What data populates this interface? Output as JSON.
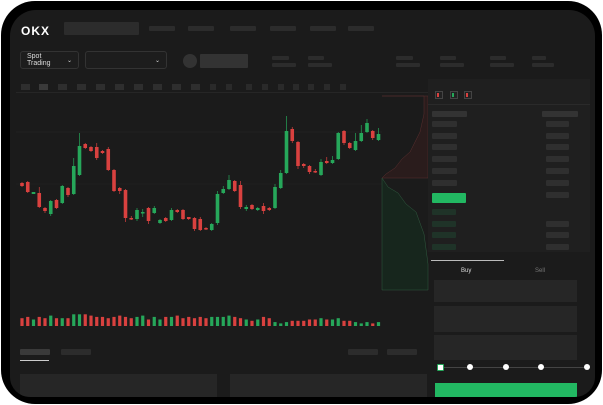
{
  "header": {
    "logo": "OKX"
  },
  "toolbar": {
    "market_selector": "Spot Trading",
    "market_chevron": "chevron-down-icon",
    "pair_chevron": "chevron-down-icon"
  },
  "order_form": {
    "buy_tab": "Buy",
    "sell_tab": "Sell",
    "active_tab": "Buy",
    "slider_percent": 0
  },
  "colors": {
    "up": "#26a75a",
    "down": "#d9413f",
    "accent": "#22b862",
    "background": "#1b1b1b"
  },
  "chart_data": {
    "type": "candlestick",
    "candles": [
      [
        48,
        49,
        44,
        45
      ],
      [
        49,
        50,
        38,
        39
      ],
      [
        37,
        39,
        37,
        39
      ],
      [
        38,
        44,
        23,
        24
      ],
      [
        23,
        24,
        18,
        20
      ],
      [
        17,
        31,
        15,
        30
      ],
      [
        31,
        32,
        22,
        23
      ],
      [
        28,
        46,
        27,
        45
      ],
      [
        43,
        44,
        34,
        36
      ],
      [
        37,
        73,
        36,
        65
      ],
      [
        56,
        98,
        55,
        85
      ],
      [
        87,
        88,
        82,
        83
      ],
      [
        84,
        85,
        79,
        80
      ],
      [
        84,
        88,
        71,
        73
      ],
      [
        80,
        81,
        77,
        78
      ],
      [
        82,
        84,
        60,
        61
      ],
      [
        61,
        62,
        39,
        40
      ],
      [
        43,
        44,
        37,
        40
      ],
      [
        41,
        42,
        9,
        13
      ],
      [
        13,
        15,
        11,
        12
      ],
      [
        12,
        23,
        10,
        21
      ],
      [
        18,
        22,
        14,
        19
      ],
      [
        23,
        24,
        7,
        10
      ],
      [
        18,
        25,
        17,
        23
      ],
      [
        8,
        12,
        7,
        11
      ],
      [
        13,
        14,
        9,
        10
      ],
      [
        11,
        23,
        10,
        21
      ],
      [
        21,
        22,
        18,
        19
      ],
      [
        21,
        22,
        11,
        12
      ],
      [
        14,
        14,
        11,
        12
      ],
      [
        13,
        14,
        0,
        2
      ],
      [
        12,
        14,
        0,
        1
      ],
      [
        3,
        4,
        1,
        2
      ],
      [
        1,
        8,
        0,
        7
      ],
      [
        8,
        40,
        6,
        37
      ],
      [
        38,
        45,
        37,
        42
      ],
      [
        42,
        56,
        41,
        51
      ],
      [
        50,
        51,
        39,
        40
      ],
      [
        46,
        50,
        22,
        24
      ],
      [
        22,
        26,
        20,
        24
      ],
      [
        26,
        27,
        21,
        22
      ],
      [
        21,
        24,
        20,
        23
      ],
      [
        25,
        28,
        17,
        20
      ],
      [
        23,
        24,
        20,
        21
      ],
      [
        23,
        47,
        22,
        44
      ],
      [
        43,
        61,
        42,
        58
      ],
      [
        58,
        115,
        57,
        100
      ],
      [
        102,
        104,
        88,
        90
      ],
      [
        89,
        90,
        62,
        65
      ],
      [
        67,
        68,
        63,
        65
      ],
      [
        65,
        66,
        57,
        59
      ],
      [
        60,
        62,
        58,
        59
      ],
      [
        56,
        72,
        55,
        69
      ],
      [
        70,
        74,
        67,
        68
      ],
      [
        68,
        75,
        67,
        71
      ],
      [
        72,
        99,
        71,
        98
      ],
      [
        100,
        101,
        86,
        88
      ],
      [
        88,
        89,
        82,
        83
      ],
      [
        81,
        98,
        80,
        90
      ],
      [
        90,
        106,
        89,
        98
      ],
      [
        99,
        112,
        98,
        108
      ],
      [
        100,
        101,
        91,
        93
      ],
      [
        91,
        103,
        90,
        97
      ]
    ],
    "volumes": [
      6,
      7,
      5,
      7,
      6,
      8,
      6,
      6,
      6,
      9,
      9,
      9,
      8,
      7,
      7,
      6,
      7,
      8,
      7,
      6,
      7,
      8,
      5,
      7,
      5,
      7,
      7,
      8,
      6,
      7,
      6,
      7,
      6,
      7,
      7,
      7,
      8,
      7,
      6,
      5,
      4,
      5,
      7,
      6,
      3,
      2,
      3,
      4,
      4,
      4,
      5,
      5,
      6,
      5,
      5,
      6,
      4,
      4,
      3,
      2,
      3,
      2,
      3
    ],
    "depth_sides": [
      "bids",
      "asks"
    ]
  }
}
